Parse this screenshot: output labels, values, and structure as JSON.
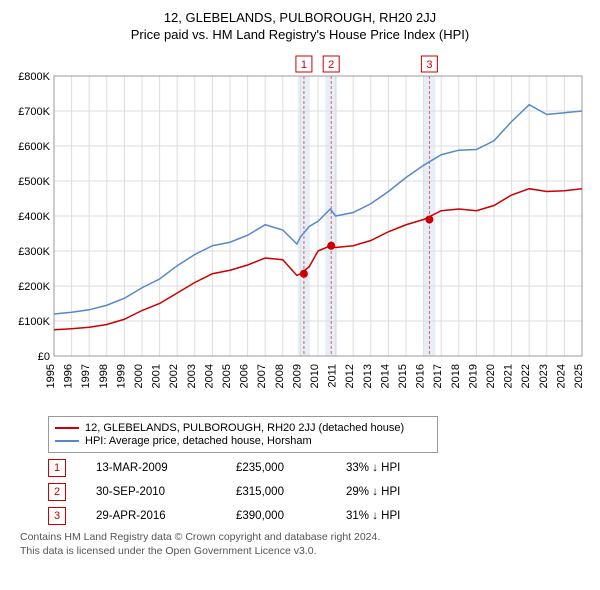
{
  "title": {
    "line1": "12, GLEBELANDS, PULBOROUGH, RH20 2JJ",
    "line2": "Price paid vs. HM Land Registry's House Price Index (HPI)"
  },
  "chart": {
    "type": "line",
    "background_color": "#ffffff",
    "grid_color": "#dddddd",
    "axis_color": "#999999",
    "tick_label_color": "#000000",
    "tick_fontsize": 11,
    "ylabel_prefix": "£",
    "ylim": [
      0,
      800
    ],
    "ytick_step": 100,
    "yticks": [
      "£0",
      "£100K",
      "£200K",
      "£300K",
      "£400K",
      "£500K",
      "£600K",
      "£700K",
      "£800K"
    ],
    "xlim": [
      1995,
      2025
    ],
    "xticks": [
      "1995",
      "1996",
      "1997",
      "1998",
      "1999",
      "2000",
      "2001",
      "2002",
      "2003",
      "2004",
      "2005",
      "2006",
      "2007",
      "2008",
      "2009",
      "2010",
      "2011",
      "2012",
      "2013",
      "2014",
      "2015",
      "2016",
      "2017",
      "2018",
      "2019",
      "2020",
      "2021",
      "2022",
      "2023",
      "2024",
      "2025"
    ],
    "xtick_rotation": 90,
    "series": [
      {
        "name": "12, GLEBELANDS, PULBOROUGH, RH20 2JJ (detached house)",
        "color": "#cc0000",
        "line_width": 1.5,
        "data": [
          [
            1995,
            75
          ],
          [
            1996,
            78
          ],
          [
            1997,
            82
          ],
          [
            1998,
            90
          ],
          [
            1999,
            105
          ],
          [
            2000,
            130
          ],
          [
            2001,
            150
          ],
          [
            2002,
            180
          ],
          [
            2003,
            210
          ],
          [
            2004,
            235
          ],
          [
            2005,
            245
          ],
          [
            2006,
            260
          ],
          [
            2007,
            280
          ],
          [
            2008,
            275
          ],
          [
            2008.8,
            230
          ],
          [
            2009,
            235
          ],
          [
            2009.5,
            255
          ],
          [
            2010,
            300
          ],
          [
            2010.7,
            315
          ],
          [
            2011,
            310
          ],
          [
            2012,
            315
          ],
          [
            2013,
            330
          ],
          [
            2014,
            355
          ],
          [
            2015,
            375
          ],
          [
            2016,
            390
          ],
          [
            2017,
            415
          ],
          [
            2018,
            420
          ],
          [
            2019,
            415
          ],
          [
            2020,
            430
          ],
          [
            2021,
            460
          ],
          [
            2022,
            478
          ],
          [
            2023,
            470
          ],
          [
            2024,
            472
          ],
          [
            2025,
            478
          ]
        ]
      },
      {
        "name": "HPI: Average price, detached house, Horsham",
        "color": "#5588cc",
        "line_width": 1.5,
        "data": [
          [
            1995,
            120
          ],
          [
            1996,
            125
          ],
          [
            1997,
            132
          ],
          [
            1998,
            145
          ],
          [
            1999,
            165
          ],
          [
            2000,
            195
          ],
          [
            2001,
            220
          ],
          [
            2002,
            258
          ],
          [
            2003,
            290
          ],
          [
            2004,
            315
          ],
          [
            2005,
            325
          ],
          [
            2006,
            345
          ],
          [
            2007,
            375
          ],
          [
            2008,
            360
          ],
          [
            2008.8,
            320
          ],
          [
            2009,
            340
          ],
          [
            2009.5,
            370
          ],
          [
            2010,
            385
          ],
          [
            2010.7,
            420
          ],
          [
            2011,
            400
          ],
          [
            2012,
            410
          ],
          [
            2013,
            435
          ],
          [
            2014,
            470
          ],
          [
            2015,
            510
          ],
          [
            2016,
            545
          ],
          [
            2017,
            575
          ],
          [
            2018,
            588
          ],
          [
            2019,
            590
          ],
          [
            2020,
            615
          ],
          [
            2021,
            670
          ],
          [
            2022,
            718
          ],
          [
            2023,
            690
          ],
          [
            2024,
            695
          ],
          [
            2025,
            700
          ]
        ]
      }
    ],
    "sale_bands": {
      "color": "#e8eef8",
      "dash_color": "#cc6666",
      "positions": [
        2009.2,
        2010.75,
        2016.33
      ]
    },
    "sale_markers": {
      "color": "#cc0000",
      "radius": 4,
      "points": [
        [
          2009.2,
          235
        ],
        [
          2010.75,
          315
        ],
        [
          2016.33,
          390
        ]
      ]
    },
    "sale_badges": {
      "border_color": "#cc0000",
      "text_color": "#cc0000",
      "labels": [
        "1",
        "2",
        "3"
      ]
    }
  },
  "legend": {
    "border_color": "#999999",
    "fontsize": 11,
    "items": [
      {
        "color": "#cc0000",
        "label": "12, GLEBELANDS, PULBOROUGH, RH20 2JJ (detached house)"
      },
      {
        "color": "#5588cc",
        "label": "HPI: Average price, detached house, Horsham"
      }
    ]
  },
  "sales": [
    {
      "badge": "1",
      "date": "13-MAR-2009",
      "price": "£235,000",
      "pct": "33% ↓ HPI"
    },
    {
      "badge": "2",
      "date": "30-SEP-2010",
      "price": "£315,000",
      "pct": "29% ↓ HPI"
    },
    {
      "badge": "3",
      "date": "29-APR-2016",
      "price": "£390,000",
      "pct": "31% ↓ HPI"
    }
  ],
  "footer": {
    "line1": "Contains HM Land Registry data © Crown copyright and database right 2024.",
    "line2": "This data is licensed under the Open Government Licence v3.0."
  }
}
